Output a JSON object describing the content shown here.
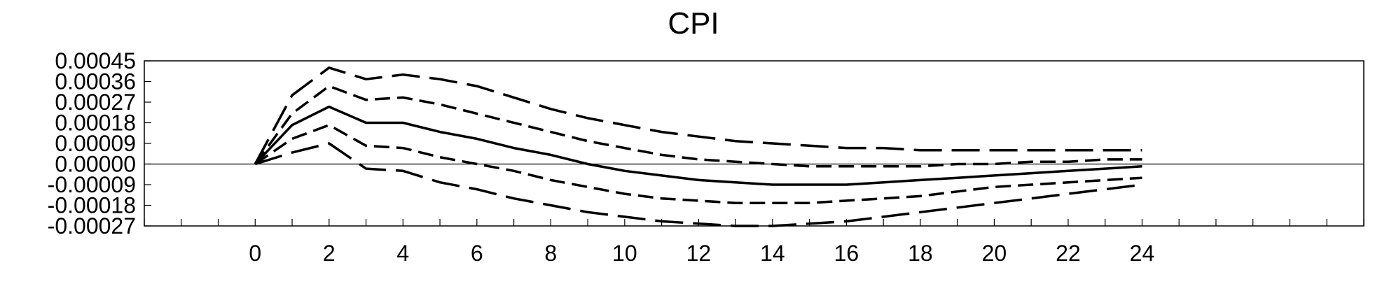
{
  "chart_data": {
    "type": "line",
    "title": "CPI",
    "xlabel": "",
    "ylabel": "",
    "xlim": [
      -3,
      30
    ],
    "ylim": [
      -0.00027,
      0.00045
    ],
    "x_ticks": [
      0,
      2,
      4,
      6,
      8,
      10,
      12,
      14,
      16,
      18,
      20,
      22,
      24
    ],
    "x_tick_labels": [
      "0",
      "2",
      "4",
      "6",
      "8",
      "10",
      "12",
      "14",
      "16",
      "18",
      "20",
      "22",
      "24"
    ],
    "y_ticks": [
      0.00045,
      0.00036,
      0.00027,
      0.00018,
      9e-05,
      0.0,
      -9e-05,
      -0.00018,
      -0.00027
    ],
    "y_tick_labels": [
      "0.00045",
      "0.00036",
      "0.00027",
      "0.00018",
      "0.00009",
      "0.00000",
      "-0.00009",
      "-0.00018",
      "-0.00027"
    ],
    "grid": false,
    "zero_line": true,
    "x": [
      0,
      1,
      2,
      3,
      4,
      5,
      6,
      7,
      8,
      9,
      10,
      11,
      12,
      13,
      14,
      15,
      16,
      17,
      18,
      19,
      20,
      21,
      22,
      23,
      24
    ],
    "series": [
      {
        "style": "long-dash",
        "values": [
          0,
          0.0003,
          0.00042,
          0.00037,
          0.00039,
          0.00037,
          0.00034,
          0.00029,
          0.00024,
          0.0002,
          0.00017,
          0.00014,
          0.00012,
          0.0001,
          9e-05,
          8e-05,
          7e-05,
          7e-05,
          6e-05,
          6e-05,
          6e-05,
          6e-05,
          6e-05,
          6e-05,
          6e-05
        ]
      },
      {
        "style": "short-dash",
        "values": [
          0,
          0.00022,
          0.00034,
          0.00028,
          0.00029,
          0.00026,
          0.00022,
          0.00018,
          0.00014,
          0.0001,
          7e-05,
          4e-05,
          2e-05,
          1e-05,
          0.0,
          -1e-05,
          -1e-05,
          -1e-05,
          -1e-05,
          0.0,
          0.0,
          1e-05,
          1e-05,
          2e-05,
          2e-05
        ]
      },
      {
        "style": "solid",
        "values": [
          0,
          0.00017,
          0.00025,
          0.00018,
          0.00018,
          0.00014,
          0.00011,
          7e-05,
          4e-05,
          0.0,
          -3e-05,
          -5e-05,
          -7e-05,
          -8e-05,
          -9e-05,
          -9e-05,
          -9e-05,
          -8e-05,
          -7e-05,
          -6e-05,
          -5e-05,
          -4e-05,
          -3e-05,
          -2e-05,
          -1e-05
        ]
      },
      {
        "style": "short-dash",
        "values": [
          0,
          0.00011,
          0.00017,
          8e-05,
          7e-05,
          3e-05,
          0.0,
          -3e-05,
          -7e-05,
          -0.0001,
          -0.00013,
          -0.00015,
          -0.00016,
          -0.00017,
          -0.00017,
          -0.00017,
          -0.00016,
          -0.00015,
          -0.00014,
          -0.00012,
          -0.0001,
          -9e-05,
          -8e-05,
          -7e-05,
          -6e-05
        ]
      },
      {
        "style": "long-dash",
        "values": [
          0,
          5e-05,
          9e-05,
          -2e-05,
          -3e-05,
          -8e-05,
          -0.00011,
          -0.00015,
          -0.00018,
          -0.00021,
          -0.00023,
          -0.00025,
          -0.00026,
          -0.00027,
          -0.00027,
          -0.00026,
          -0.00025,
          -0.00023,
          -0.00021,
          -0.00019,
          -0.00017,
          -0.00015,
          -0.00013,
          -0.00011,
          -9e-05
        ]
      }
    ]
  }
}
